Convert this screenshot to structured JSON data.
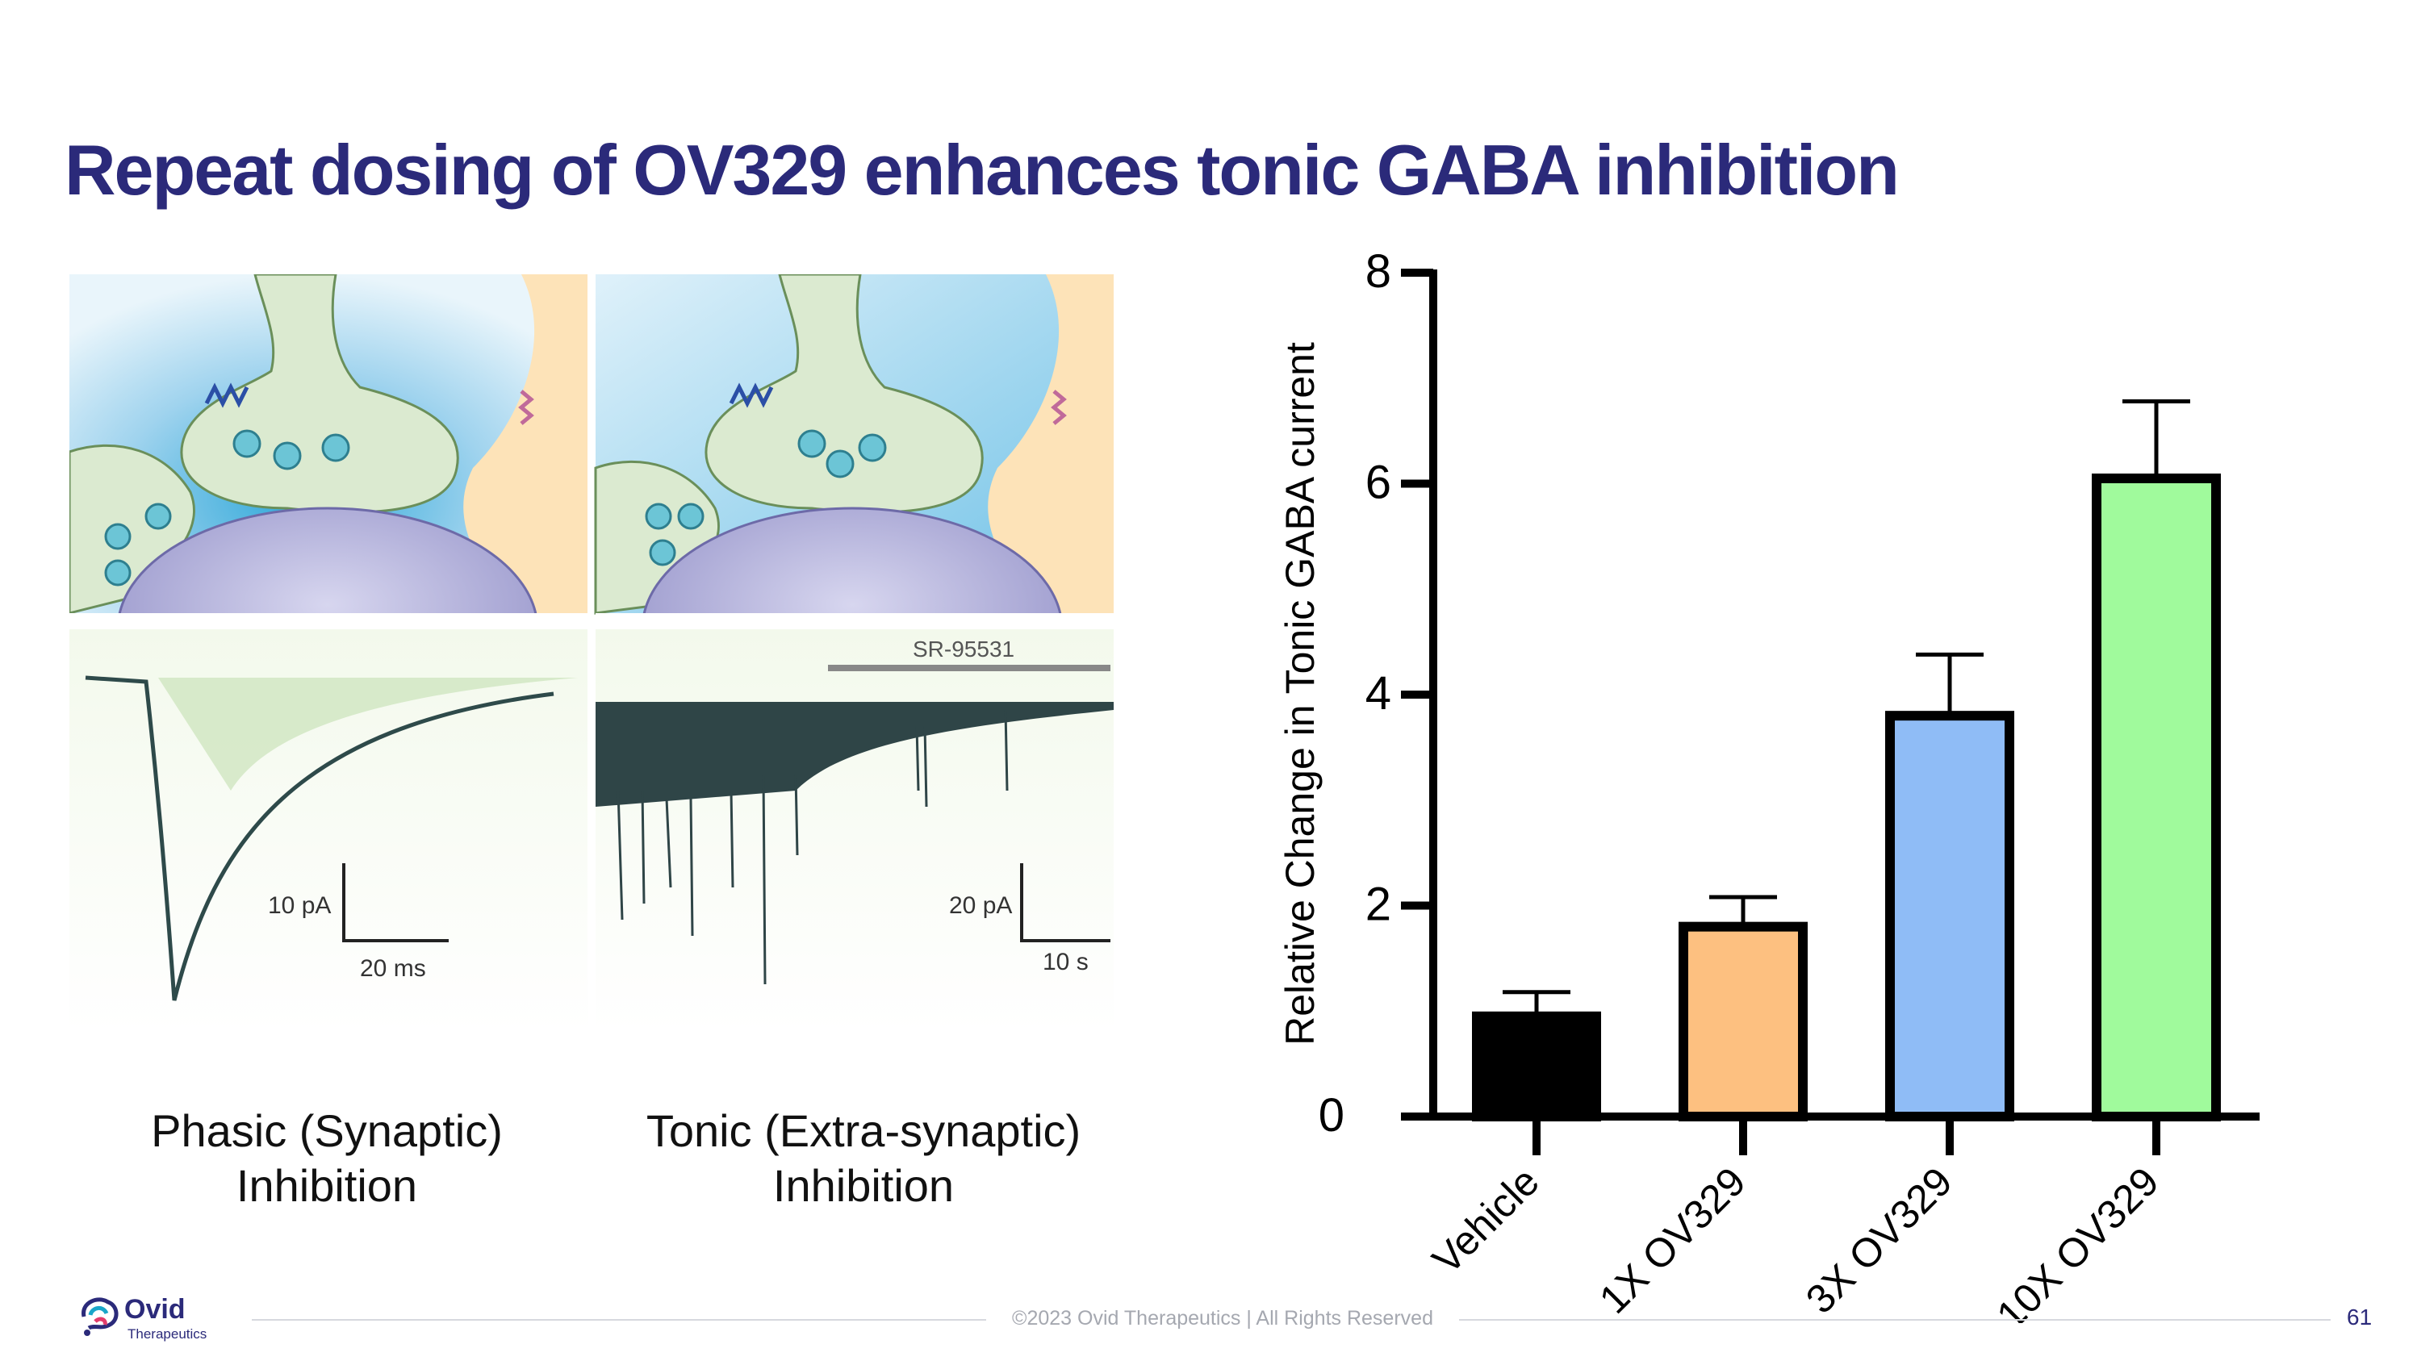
{
  "title": "Repeat dosing of OV329 enhances tonic GABA  inhibition",
  "figure": {
    "scale_left_y": "10 pA",
    "scale_left_x": "20 ms",
    "drug_label": "SR-95531",
    "scale_right_y": "20 pA",
    "scale_right_x": "10 s"
  },
  "captions": {
    "phasic": [
      "Phasic (Synaptic)",
      "Inhibition"
    ],
    "tonic": [
      "Tonic (Extra-synaptic)",
      "Inhibition"
    ]
  },
  "chart_data": {
    "type": "bar",
    "title": "",
    "xlabel": "",
    "ylabel": "Relative Change in Tonic GABA current",
    "categories": [
      "Vehicle",
      "1X OV329",
      "3X OV329",
      "10X OV329"
    ],
    "values": [
      0.95,
      1.8,
      3.8,
      6.05
    ],
    "error_upper": [
      1.18,
      2.08,
      4.38,
      6.78
    ],
    "colors": [
      "#000000",
      "#fdc080",
      "#8fbcf6",
      "#a0fa9c"
    ],
    "ylim": [
      0,
      8
    ],
    "yticks": [
      0,
      2,
      4,
      6,
      8
    ],
    "grid": false
  },
  "footer": {
    "copyright": "©2023 Ovid Therapeutics | All Rights Reserved",
    "page": "61"
  },
  "logo": {
    "word": "Ovid",
    "sub": "Therapeutics"
  }
}
